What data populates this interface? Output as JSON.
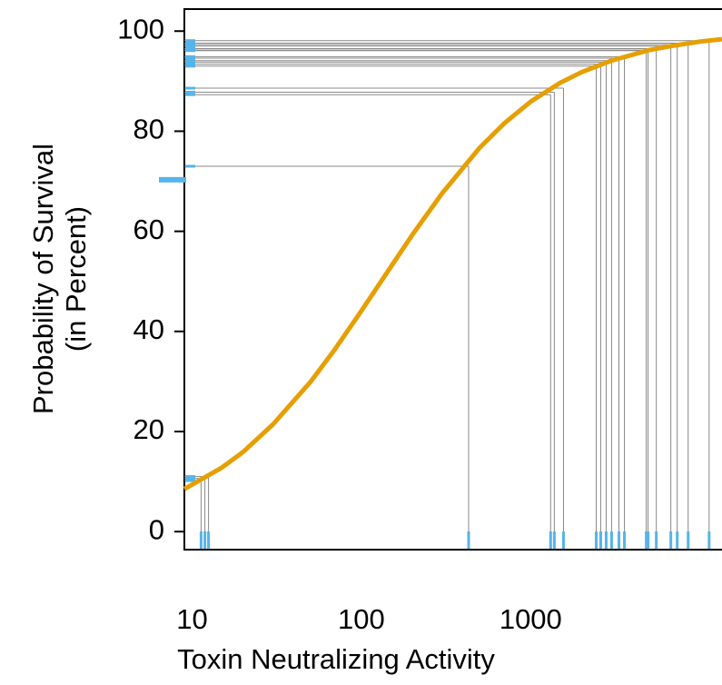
{
  "chart_data": {
    "type": "dose-response",
    "xlabel": "Toxin Neutralizing Activity",
    "ylabel": [
      "Probability of Survival",
      "(in Percent)"
    ],
    "xlog": true,
    "xlim": [
      9,
      13500
    ],
    "xticks": [
      10,
      100,
      1000
    ],
    "ylim": [
      -3.6,
      104.4
    ],
    "yticks": [
      0,
      20,
      40,
      60,
      80,
      100
    ],
    "curve": {
      "color": "#e69f00",
      "x": [
        9,
        15,
        20,
        30,
        50,
        70,
        100,
        150,
        200,
        300,
        500,
        700,
        1000,
        1500,
        2000,
        3000,
        5000,
        7000,
        10000,
        13500
      ],
      "y": [
        8.5,
        12.8,
        15.9,
        21.4,
        29.9,
        36.5,
        44.1,
        53.0,
        59.3,
        67.6,
        76.7,
        81.6,
        85.9,
        89.7,
        91.8,
        94.1,
        96.2,
        97.1,
        97.9,
        98.4
      ]
    },
    "observations": {
      "color": "#56b4e9",
      "guide_color": "#888888",
      "x": [
        11.3,
        11.9,
        12.5,
        430,
        1312,
        1380,
        1563,
        2440,
        2594,
        2793,
        3007,
        3323,
        3579,
        4819,
        4940,
        5523,
        6730,
        7340,
        8520,
        11330
      ],
      "y": [
        10.2,
        10.6,
        11.0,
        73.0,
        87.3,
        87.8,
        88.6,
        93.0,
        93.4,
        93.8,
        94.1,
        94.6,
        94.9,
        96.1,
        96.2,
        96.5,
        97.0,
        97.3,
        97.6,
        98.1
      ]
    },
    "left_marker": {
      "value": 70.3,
      "color": "#56b4e9"
    }
  }
}
